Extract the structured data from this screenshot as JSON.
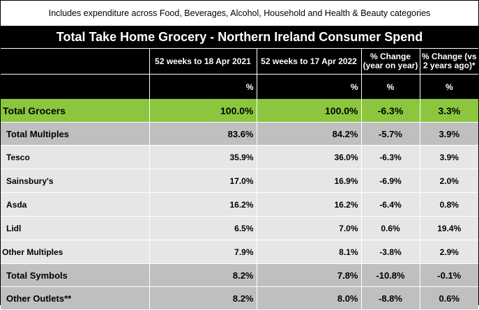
{
  "caption": "Includes expenditure across Food, Beverages, Alcohol, Household and Health & Beauty categories",
  "title": "Total Take Home Grocery - Northern Ireland Consumer Spend",
  "headers": {
    "col1": "52 weeks to 18 Apr 2021",
    "col2": "52 weeks to 17 Apr 2022",
    "col3": "% Change (year on year)",
    "col4": "% Change (vs 2 years ago)*"
  },
  "units": {
    "col1": "%",
    "col2": "%",
    "col3": "%",
    "col4": "%"
  },
  "rows": [
    {
      "label": "Total Grocers",
      "v2021": "100.0%",
      "v2022": "100.0%",
      "yoy": "-6.3%",
      "vs2y": "3.3%"
    },
    {
      "label": "Total Multiples",
      "v2021": "83.6%",
      "v2022": "84.2%",
      "yoy": "-5.7%",
      "vs2y": "3.9%"
    },
    {
      "label": "Tesco",
      "v2021": "35.9%",
      "v2022": "36.0%",
      "yoy": "-6.3%",
      "vs2y": "3.9%"
    },
    {
      "label": "Sainsbury's",
      "v2021": "17.0%",
      "v2022": "16.9%",
      "yoy": "-6.9%",
      "vs2y": "2.0%"
    },
    {
      "label": "Asda",
      "v2021": "16.2%",
      "v2022": "16.2%",
      "yoy": "-6.4%",
      "vs2y": "0.8%"
    },
    {
      "label": "Lidl",
      "v2021": "6.5%",
      "v2022": "7.0%",
      "yoy": "0.6%",
      "vs2y": "19.4%"
    },
    {
      "label": "Other Multiples",
      "v2021": "7.9%",
      "v2022": "8.1%",
      "yoy": "-3.8%",
      "vs2y": "2.9%"
    },
    {
      "label": "Total Symbols",
      "v2021": "8.2%",
      "v2022": "7.8%",
      "yoy": "-10.8%",
      "vs2y": "-0.1%"
    },
    {
      "label": "Other Outlets**",
      "v2021": "8.2%",
      "v2022": "8.0%",
      "yoy": "-8.8%",
      "vs2y": "0.6%"
    }
  ]
}
